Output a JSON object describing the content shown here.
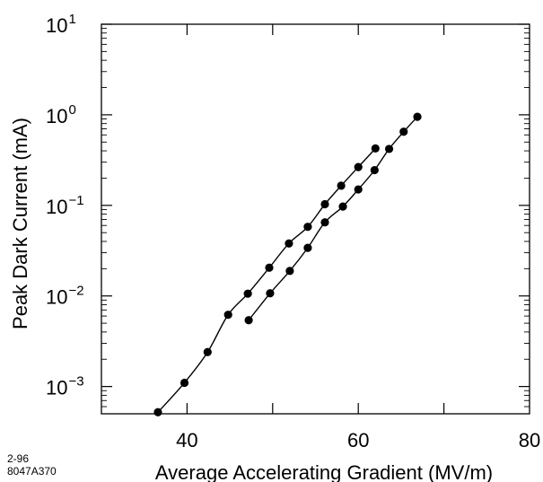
{
  "chart_data": {
    "type": "line",
    "title": "",
    "xlabel": "Average Accelerating Gradient  (MV/m)",
    "ylabel": "Peak Dark Current  (mA)",
    "xlim": [
      30,
      80
    ],
    "ylim": [
      0.0005,
      10
    ],
    "yscale": "log",
    "grid": false,
    "x_ticks": [
      {
        "value": 40,
        "label": "40"
      },
      {
        "value": 60,
        "label": "60"
      },
      {
        "value": 80,
        "label": "80"
      }
    ],
    "y_ticks": [
      {
        "value": 10,
        "base": "10",
        "exp": "1"
      },
      {
        "value": 1,
        "base": "10",
        "exp": "0"
      },
      {
        "value": 0.1,
        "base": "10",
        "exp": "−1"
      },
      {
        "value": 0.01,
        "base": "10",
        "exp": "−2"
      },
      {
        "value": 0.001,
        "base": "10",
        "exp": "−3"
      }
    ],
    "series": [
      {
        "x": [
          36.6,
          39.7,
          42.4,
          44.8,
          47.1,
          49.6,
          51.9,
          54.1,
          56.1,
          58.0,
          60.0,
          62.0
        ],
        "y": [
          0.00052,
          0.0011,
          0.0024,
          0.0062,
          0.0106,
          0.0205,
          0.038,
          0.058,
          0.103,
          0.165,
          0.265,
          0.425
        ]
      },
      {
        "x": [
          47.2,
          49.7,
          52.0,
          54.1,
          56.1,
          58.2,
          60.0,
          61.9,
          63.6,
          65.3,
          66.9
        ],
        "y": [
          0.0054,
          0.0107,
          0.0189,
          0.034,
          0.065,
          0.097,
          0.15,
          0.245,
          0.42,
          0.65,
          0.95
        ]
      }
    ]
  },
  "stamp": {
    "line1": "2-96",
    "line2": "8047A370"
  }
}
